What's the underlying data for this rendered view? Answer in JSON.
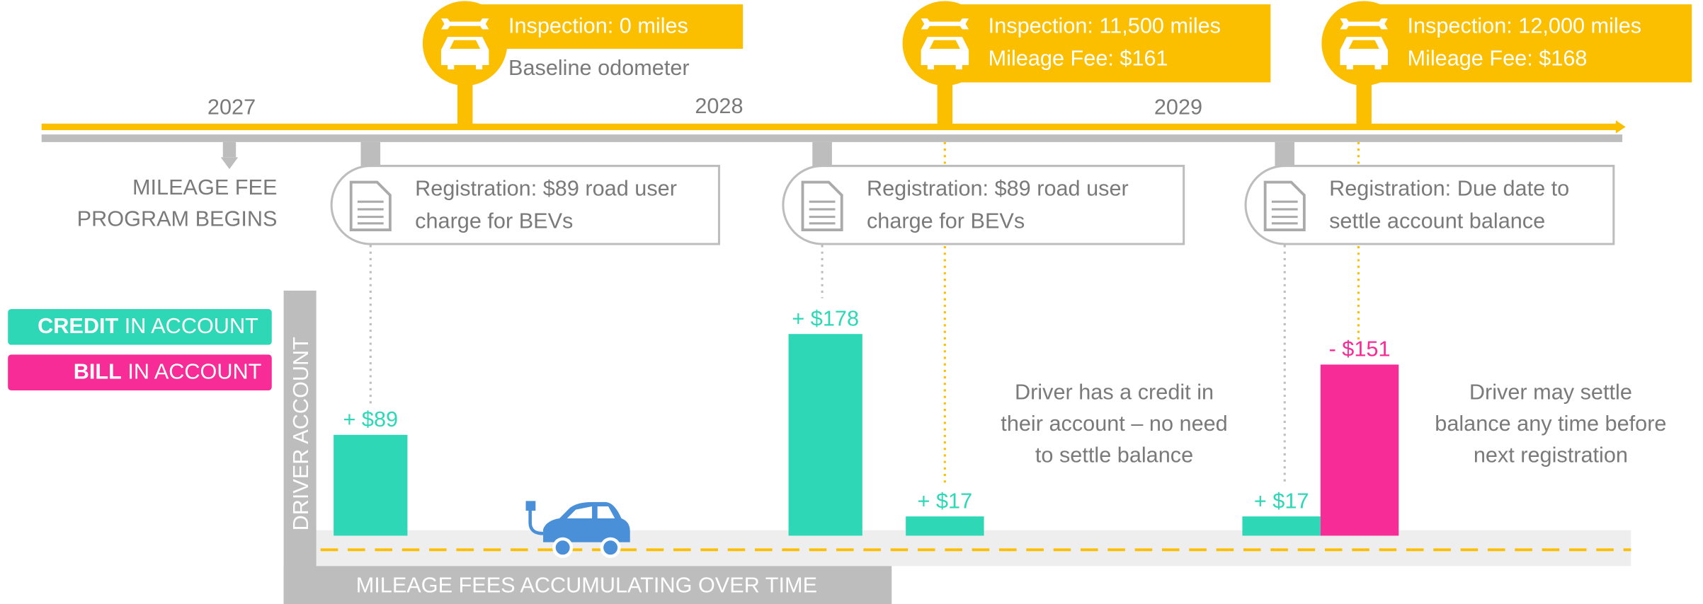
{
  "timeline": {
    "years": [
      "2027",
      "2028",
      "2029"
    ],
    "start_label": [
      "MILEAGE FEE",
      "PROGRAM BEGINS"
    ]
  },
  "inspections": [
    {
      "lines": [
        "Inspection: 0 miles"
      ],
      "detail": "Baseline odometer"
    },
    {
      "lines": [
        "Inspection: 11,500 miles",
        "Mileage Fee: $161"
      ]
    },
    {
      "lines": [
        "Inspection: 12,000 miles",
        "Mileage Fee: $168"
      ]
    }
  ],
  "registrations": [
    {
      "lines": [
        "Registration: $89 road user",
        "charge for BEVs"
      ]
    },
    {
      "lines": [
        "Registration: $89 road user",
        "charge for BEVs"
      ]
    },
    {
      "lines": [
        "Registration: Due date to",
        "settle account balance"
      ]
    }
  ],
  "legend": {
    "credit": {
      "bold": "CREDIT",
      "rest": "IN ACCOUNT",
      "color": "#2ed8b6"
    },
    "bill": {
      "bold": "BILL",
      "rest": "IN ACCOUNT",
      "color": "#f72c96"
    }
  },
  "account": {
    "y_label": "DRIVER ACCOUNT",
    "x_label": "MILEAGE FEES ACCUMULATING OVER TIME",
    "bars": [
      {
        "kind": "credit",
        "value": 89,
        "label": "+ $89"
      },
      {
        "kind": "credit",
        "value": 178,
        "label": "+ $178"
      },
      {
        "kind": "credit",
        "value": 17,
        "label": "+ $17"
      },
      {
        "kind": "credit",
        "value": 17,
        "label": "+ $17"
      },
      {
        "kind": "bill",
        "value": -151,
        "label": "- $151"
      }
    ]
  },
  "notes": [
    {
      "lines": [
        "Driver has a credit in",
        "their account – no need",
        "to settle balance"
      ]
    },
    {
      "lines": [
        "Driver may settle",
        "balance any time before",
        "next registration"
      ]
    }
  ]
}
